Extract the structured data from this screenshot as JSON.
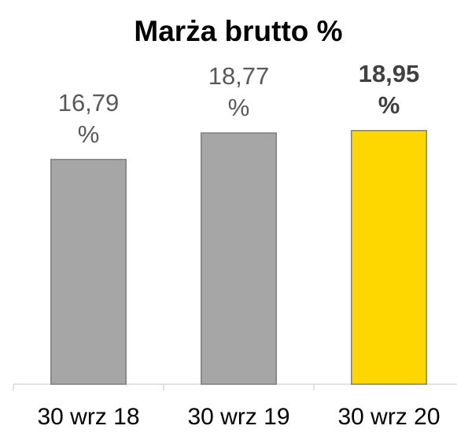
{
  "chart_data": {
    "type": "bar",
    "title": "Marża brutto %",
    "categories": [
      "30 wrz 18",
      "30 wrz 19",
      "30 wrz 20"
    ],
    "values": [
      16.79,
      18.77,
      18.95
    ],
    "value_labels": [
      "16,79 %",
      "18,77 %",
      "18,95 %"
    ],
    "colors": [
      "#a6a6a6",
      "#a6a6a6",
      "#ffd700"
    ],
    "label_bold": [
      false,
      false,
      true
    ],
    "ylim": [
      0,
      20
    ]
  }
}
